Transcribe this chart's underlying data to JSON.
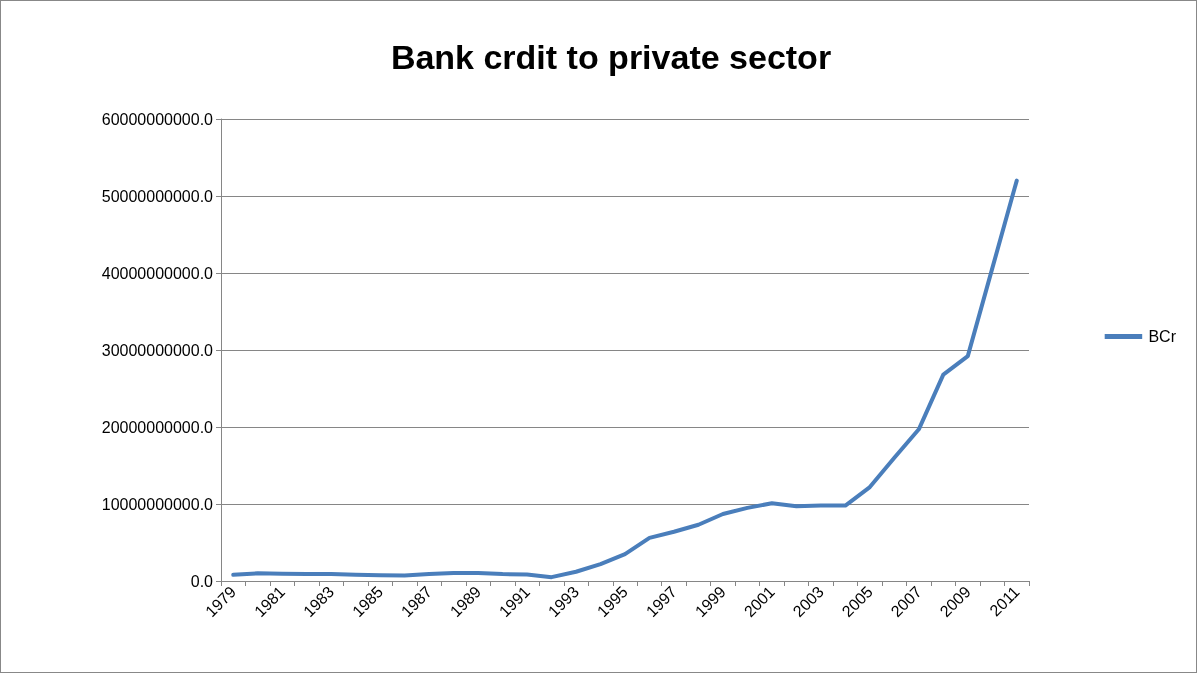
{
  "chart_data": {
    "type": "line",
    "title": "Bank crdit to private sector",
    "categories": [
      "1979",
      null,
      "1981",
      null,
      "1983",
      null,
      "1985",
      null,
      "1987",
      null,
      "1989",
      null,
      "1991",
      null,
      "1993",
      null,
      "1995",
      null,
      "1997",
      null,
      "1999",
      null,
      "2001",
      null,
      "2003",
      null,
      "2005",
      null,
      "2007",
      null,
      "2009",
      null,
      "2011"
    ],
    "series": [
      {
        "name": "BCr",
        "color": "#4a7ebb",
        "values": [
          800000000,
          1000000000,
          950000000,
          900000000,
          900000000,
          800000000,
          750000000,
          700000000,
          900000000,
          1050000000,
          1050000000,
          900000000,
          850000000,
          500000000,
          1200000000,
          2200000000,
          3500000000,
          5600000000,
          6400000000,
          7300000000,
          8700000000,
          9500000000,
          10100000000,
          9700000000,
          9800000000,
          9800000000,
          12200000000,
          16000000000,
          19700000000,
          26800000000,
          29200000000,
          40600000000,
          52000000000
        ]
      }
    ],
    "ylim": [
      0,
      60000000000
    ],
    "yticks": [
      {
        "value": 0,
        "label": "0.0"
      },
      {
        "value": 10000000000,
        "label": "10000000000.0"
      },
      {
        "value": 20000000000,
        "label": "20000000000.0"
      },
      {
        "value": 30000000000,
        "label": "30000000000.0"
      },
      {
        "value": 40000000000,
        "label": "40000000000.0"
      },
      {
        "value": 50000000000,
        "label": "50000000000.0"
      },
      {
        "value": 60000000000,
        "label": "60000000000.0"
      }
    ],
    "grid": "y",
    "legend": "right",
    "marker": "none",
    "line_style": "solid"
  }
}
